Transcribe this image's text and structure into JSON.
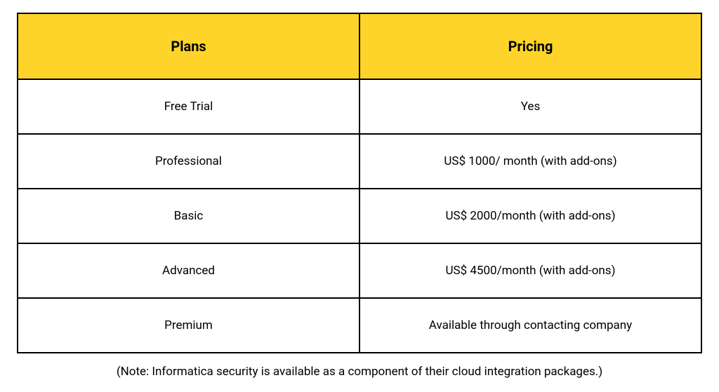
{
  "table": {
    "type": "table",
    "columns": [
      "Plans",
      "Pricing"
    ],
    "rows": [
      [
        "Free Trial",
        "Yes"
      ],
      [
        "Professional",
        "US$ 1000/ month (with add-ons)"
      ],
      [
        "Basic",
        "US$ 2000/month (with add-ons)"
      ],
      [
        "Advanced",
        "US$ 4500/month (with add-ons)"
      ],
      [
        "Premium",
        "Available through contacting company"
      ]
    ],
    "header_background_color": "#ffd42a",
    "header_text_color": "#000000",
    "header_fontsize": 20,
    "header_fontweight": 700,
    "cell_background_color": "#ffffff",
    "cell_text_color": "#000000",
    "cell_fontsize": 17,
    "border_color": "#000000",
    "border_width": 2,
    "column_widths": [
      "50%",
      "50%"
    ]
  },
  "note": "(Note: Informatica security is available as a component of their cloud integration packages.)",
  "note_fontsize": 17,
  "background_color": "#ffffff"
}
